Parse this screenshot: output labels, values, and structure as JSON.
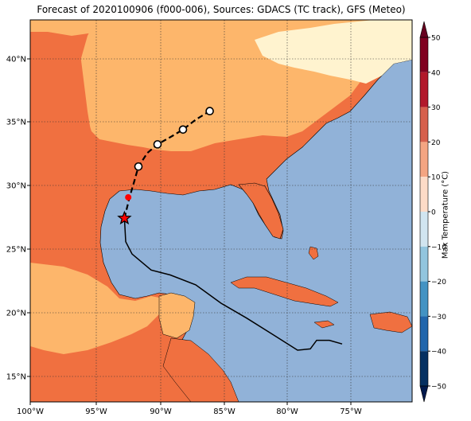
{
  "title": "Forecast of 2020100906 (f000-006), Sources: GDACS (TC track), GFS (Meteo)",
  "colorbar": {
    "label": "Max Temperature (°C)",
    "ticks": [
      "50",
      "40",
      "30",
      "20",
      "10",
      "0",
      "−10",
      "−20",
      "−30",
      "−40",
      "−50"
    ],
    "colors": [
      "#800020",
      "#b2182b",
      "#d6604d",
      "#f4a582",
      "#fddbc7",
      "#ffffff",
      "#d1e5f0",
      "#92c5de",
      "#4393c3",
      "#2166ac",
      "#053061"
    ]
  },
  "axes": {
    "lon_ticks": [
      "100°W",
      "95°W",
      "90°W",
      "85°W",
      "80°W",
      "75°W"
    ],
    "lat_ticks": [
      "40°N",
      "35°N",
      "30°N",
      "25°N",
      "20°N",
      "15°N"
    ]
  },
  "colors": {
    "ocean": "#91b2d8",
    "hot": "#f07040",
    "warm": "#fdb66b",
    "mild": "#fff3cf",
    "track_point": "#ff0000"
  },
  "track": {
    "past": [
      [
        -76.5,
        16.7
      ],
      [
        -77.5,
        17.0
      ],
      [
        -78.5,
        17.0
      ],
      [
        -79,
        16.3
      ],
      [
        -80,
        16.2
      ],
      [
        -82,
        17.5
      ],
      [
        -84,
        18.8
      ],
      [
        -86,
        20.0
      ],
      [
        -88,
        21.5
      ],
      [
        -90,
        22.3
      ],
      [
        -91.5,
        22.7
      ],
      [
        -93,
        24.0
      ],
      [
        -93.5,
        25.0
      ],
      [
        -93.6,
        26.9
      ]
    ],
    "forecast": [
      [
        -93.6,
        26.9
      ],
      [
        -93.2,
        28.6
      ],
      [
        -92.8,
        30.0
      ],
      [
        -92.5,
        31.1
      ],
      [
        -91.8,
        32.2
      ],
      [
        -91.0,
        32.9
      ],
      [
        -89.8,
        33.6
      ],
      [
        -89.0,
        34.1
      ],
      [
        -88.0,
        34.9
      ],
      [
        -86.9,
        35.6
      ]
    ],
    "current": [
      -93.6,
      26.9
    ],
    "red_points": [
      [
        -93.3,
        28.6
      ]
    ],
    "open_circles": [
      [
        -92.5,
        31.1
      ],
      [
        -91.0,
        32.9
      ],
      [
        -89.0,
        34.1
      ],
      [
        -86.9,
        35.6
      ]
    ]
  }
}
